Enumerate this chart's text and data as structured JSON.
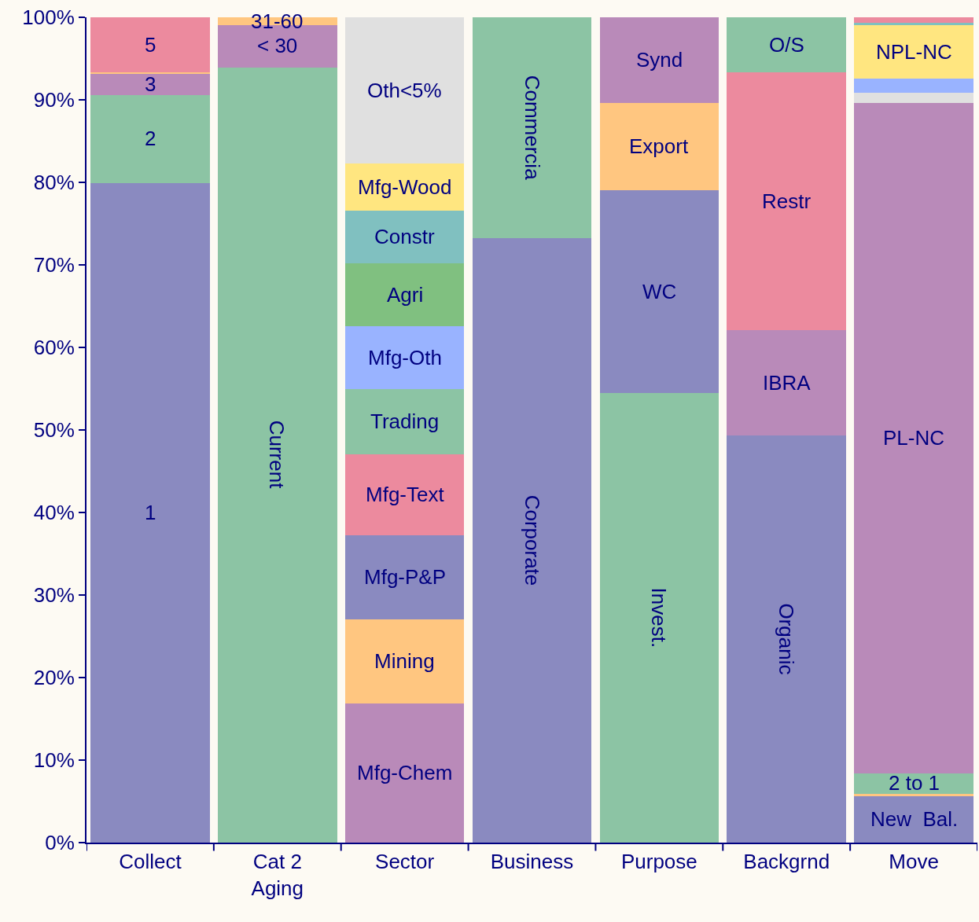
{
  "chart_data": {
    "type": "bar",
    "stacked": true,
    "grid": false,
    "categories": [
      "Collect",
      "Cat 2\nAging",
      "Sector",
      "Business",
      "Purpose",
      "Backgrnd",
      "Move"
    ],
    "ylim": [
      0,
      100
    ],
    "yticks": [
      {
        "value": 0,
        "label": "0%"
      },
      {
        "value": 10,
        "label": "10%"
      },
      {
        "value": 20,
        "label": "20%"
      },
      {
        "value": 30,
        "label": "30%"
      },
      {
        "value": 40,
        "label": "40%"
      },
      {
        "value": 50,
        "label": "50%"
      },
      {
        "value": 60,
        "label": "60%"
      },
      {
        "value": 70,
        "label": "70%"
      },
      {
        "value": 80,
        "label": "80%"
      },
      {
        "value": 90,
        "label": "90%"
      },
      {
        "value": 100,
        "label": "100%"
      }
    ],
    "series": [
      {
        "name": "1",
        "color": "#8a8ac0",
        "values": [
          80.0,
          null,
          null,
          null,
          null,
          null,
          null
        ]
      },
      {
        "name": "2",
        "color": "#8cc4a4",
        "values": [
          10.6,
          null,
          null,
          null,
          null,
          null,
          null
        ]
      },
      {
        "name": "3",
        "color": "#b98ab9",
        "values": [
          2.6,
          null,
          null,
          null,
          null,
          null,
          null
        ]
      },
      {
        "color": "#ffc680",
        "values": [
          0.2,
          null,
          null,
          null,
          null,
          null,
          null
        ]
      },
      {
        "name": "5",
        "color": "#ec8a9e",
        "values": [
          6.6,
          null,
          null,
          null,
          null,
          null,
          null
        ]
      },
      {
        "name": "Current",
        "color": "#8cc4a4",
        "values": [
          null,
          94.0,
          null,
          null,
          null,
          null,
          null
        ]
      },
      {
        "name": "< 30",
        "color": "#b98ab9",
        "values": [
          null,
          5.1,
          null,
          null,
          null,
          null,
          null
        ]
      },
      {
        "name": "31-60",
        "color": "#ffc680",
        "values": [
          null,
          0.9,
          null,
          null,
          null,
          null,
          null
        ]
      },
      {
        "name": "Mfg-Chem",
        "color": "#b98ab9",
        "values": [
          null,
          null,
          16.9,
          null,
          null,
          null,
          null
        ]
      },
      {
        "name": "Mining",
        "color": "#ffc680",
        "values": [
          null,
          null,
          10.2,
          null,
          null,
          null,
          null
        ]
      },
      {
        "name": "Mfg-P&P",
        "color": "#8a8ac0",
        "values": [
          null,
          null,
          10.2,
          null,
          null,
          null,
          null
        ]
      },
      {
        "name": "Mfg-Text",
        "color": "#ec8a9e",
        "values": [
          null,
          null,
          9.8,
          null,
          null,
          null,
          null
        ]
      },
      {
        "name": "Trading",
        "color": "#8cc4a4",
        "values": [
          null,
          null,
          7.9,
          null,
          null,
          null,
          null
        ]
      },
      {
        "name": "Mfg-Oth",
        "color": "#99b3ff",
        "values": [
          null,
          null,
          7.6,
          null,
          null,
          null,
          null
        ]
      },
      {
        "name": "Agri",
        "color": "#80c080",
        "values": [
          null,
          null,
          7.6,
          null,
          null,
          null,
          null
        ]
      },
      {
        "name": "Constr",
        "color": "#80c0c0",
        "values": [
          null,
          null,
          6.4,
          null,
          null,
          null,
          null
        ]
      },
      {
        "name": "Mfg-Wood",
        "color": "#ffe680",
        "values": [
          null,
          null,
          5.7,
          null,
          null,
          null,
          null
        ]
      },
      {
        "name": "Oth<5%",
        "color": "#e0e0e0",
        "values": [
          null,
          null,
          17.7,
          null,
          null,
          null,
          null
        ]
      },
      {
        "name": "Corporate",
        "color": "#8a8ac0",
        "values": [
          null,
          null,
          null,
          73.3,
          null,
          null,
          null
        ]
      },
      {
        "name": "Commercia",
        "color": "#8cc4a4",
        "values": [
          null,
          null,
          null,
          26.7,
          null,
          null,
          null
        ]
      },
      {
        "name": "Invest.",
        "color": "#8cc4a4",
        "values": [
          null,
          null,
          null,
          null,
          54.5,
          null,
          null
        ]
      },
      {
        "name": "WC",
        "color": "#8a8ac0",
        "values": [
          null,
          null,
          null,
          null,
          24.6,
          null,
          null
        ]
      },
      {
        "name": "Export",
        "color": "#ffc680",
        "values": [
          null,
          null,
          null,
          null,
          10.6,
          null,
          null
        ]
      },
      {
        "name": "Synd",
        "color": "#b98ab9",
        "values": [
          null,
          null,
          null,
          null,
          10.3,
          null,
          null
        ]
      },
      {
        "name": "Organic",
        "color": "#8a8ac0",
        "values": [
          null,
          null,
          null,
          null,
          null,
          49.4,
          null
        ]
      },
      {
        "name": "IBRA",
        "color": "#b98ab9",
        "values": [
          null,
          null,
          null,
          null,
          null,
          12.7,
          null
        ]
      },
      {
        "name": "Restr",
        "color": "#ec8a9e",
        "values": [
          null,
          null,
          null,
          null,
          null,
          31.3,
          null
        ]
      },
      {
        "name": "O/S",
        "color": "#8cc4a4",
        "values": [
          null,
          null,
          null,
          null,
          null,
          6.6,
          null
        ]
      },
      {
        "name": "New  Bal.",
        "color": "#8a8ac0",
        "values": [
          null,
          null,
          null,
          null,
          null,
          null,
          5.7
        ]
      },
      {
        "color": "#ffc680",
        "values": [
          null,
          null,
          null,
          null,
          null,
          null,
          0.3
        ]
      },
      {
        "name": "2 to 1",
        "color": "#8cc4a4",
        "values": [
          null,
          null,
          null,
          null,
          null,
          null,
          2.4
        ]
      },
      {
        "name": "PL-NC",
        "color": "#b98ab9",
        "values": [
          null,
          null,
          null,
          null,
          null,
          null,
          81.3
        ]
      },
      {
        "color": "#e0e0e0",
        "values": [
          null,
          null,
          null,
          null,
          null,
          null,
          1.2
        ]
      },
      {
        "color": "#99b3ff",
        "values": [
          null,
          null,
          null,
          null,
          null,
          null,
          1.7
        ]
      },
      {
        "name": "NPL-NC",
        "color": "#ffe680",
        "values": [
          null,
          null,
          null,
          null,
          null,
          null,
          6.5
        ]
      },
      {
        "color": "#80c0c0",
        "values": [
          null,
          null,
          null,
          null,
          null,
          null,
          0.3
        ]
      },
      {
        "color": "#ec8a9e",
        "values": [
          null,
          null,
          null,
          null,
          null,
          null,
          0.6
        ]
      }
    ]
  }
}
